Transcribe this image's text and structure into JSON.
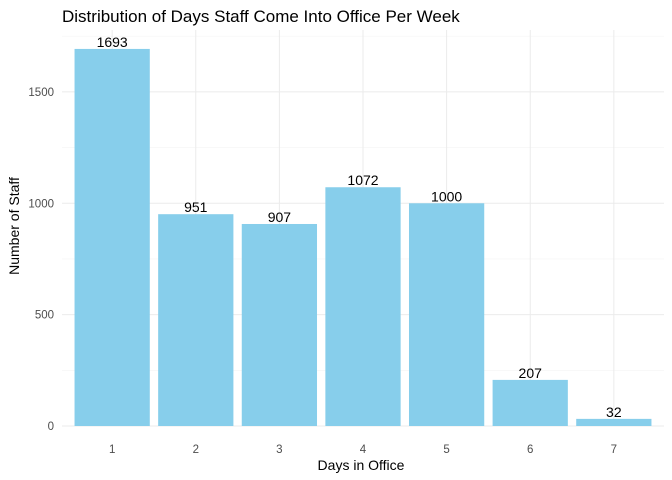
{
  "chart_data": {
    "type": "bar",
    "title": "Distribution of Days Staff Come Into Office Per Week",
    "xlabel": "Days in Office",
    "ylabel": "Number of Staff",
    "categories": [
      "1",
      "2",
      "3",
      "4",
      "5",
      "6",
      "7"
    ],
    "values": [
      1693,
      951,
      907,
      1072,
      1000,
      207,
      32
    ],
    "ylim": [
      0,
      1778
    ],
    "yticks": [
      0,
      500,
      1000,
      1500
    ],
    "yticklabels": [
      "0",
      "500",
      "1000",
      "1500"
    ],
    "grid": true,
    "legend": "none",
    "bar_color": "#87CEEB"
  }
}
